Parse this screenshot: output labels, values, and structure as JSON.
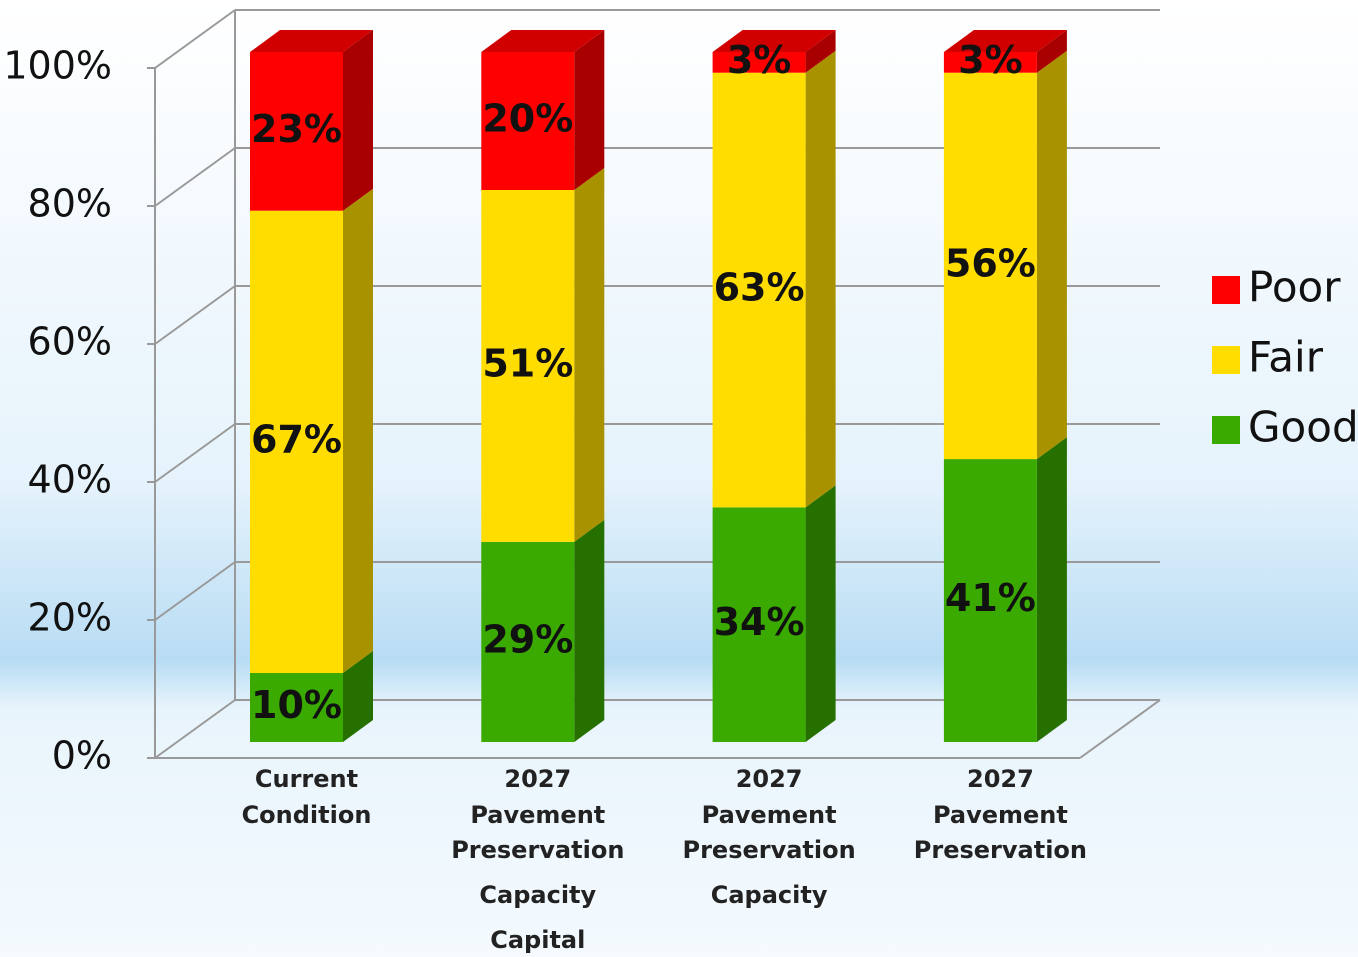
{
  "chart_data": {
    "type": "bar3d_stacked",
    "categories": [
      [
        "Current",
        "Condition"
      ],
      [
        "2027",
        "Pavement",
        "Preservation",
        "Capacity",
        "Capital"
      ],
      [
        "2027",
        "Pavement",
        "Preservation",
        "Capacity"
      ],
      [
        "2027",
        "Pavement",
        "Preservation"
      ]
    ],
    "series": [
      {
        "name": "Good",
        "color": "#3aaa00",
        "values": [
          10,
          29,
          34,
          41
        ],
        "value_labels": [
          "10%",
          "29%",
          "34%",
          "41%"
        ]
      },
      {
        "name": "Fair",
        "color": "#ffdd00",
        "values": [
          67,
          51,
          63,
          56
        ],
        "value_labels": [
          "67%",
          "51%",
          "63%",
          "56%"
        ]
      },
      {
        "name": "Poor",
        "color": "#ff0000",
        "values": [
          23,
          20,
          3,
          3
        ],
        "value_labels": [
          "23%",
          "20%",
          "3%",
          "3%"
        ]
      }
    ],
    "ylim": [
      0,
      100
    ],
    "yticks": [
      {
        "value": 0,
        "label": "0%"
      },
      {
        "value": 20,
        "label": "20%"
      },
      {
        "value": 40,
        "label": "40%"
      },
      {
        "value": 60,
        "label": "60%"
      },
      {
        "value": 80,
        "label": "80%"
      },
      {
        "value": 100,
        "label": "100%"
      }
    ],
    "grid": true,
    "legend": "right"
  }
}
